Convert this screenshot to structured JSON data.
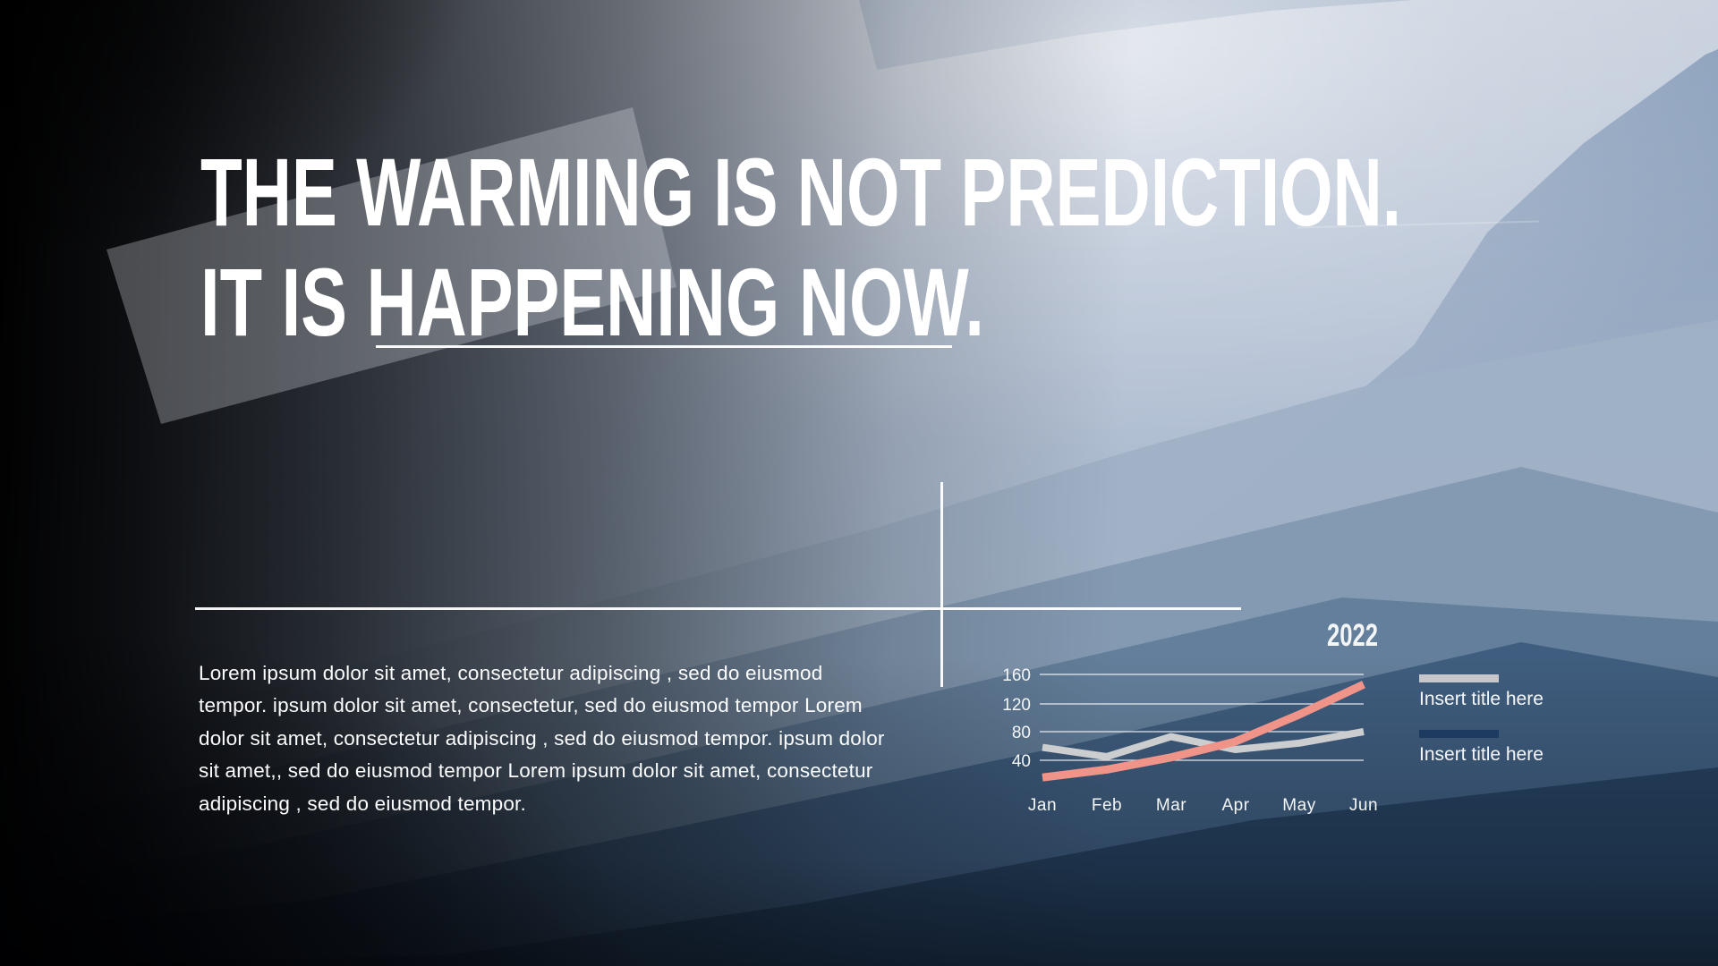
{
  "title": {
    "line1": "THE WARMING IS NOT PREDICTION.",
    "line2": "IT IS HAPPENING NOW."
  },
  "body_text": "Lorem ipsum dolor sit amet, consectetur adipiscing , sed do eiusmod tempor. ipsum dolor sit amet, consectetur, sed do eiusmod tempor  Lorem dolor sit amet, consectetur adipiscing , sed do eiusmod tempor. ipsum dolor sit amet,, sed do eiusmod tempor  Lorem ipsum dolor sit amet, consectetur adipiscing , sed do eiusmod tempor.",
  "chart_data": {
    "type": "line",
    "year_label": "2022",
    "categories": [
      "Jan",
      "Feb",
      "Mar",
      "Apr",
      "May",
      "Jun"
    ],
    "yticks": [
      "160",
      "120",
      "80",
      "40"
    ],
    "ylim": [
      0,
      180
    ],
    "grid": true,
    "legend_position": "right",
    "series": [
      {
        "name": "Insert title here",
        "color": "#cccdcf",
        "values": [
          58,
          45,
          73,
          55,
          64,
          80
        ]
      },
      {
        "name": "Insert title here",
        "color": "#f0948a",
        "values": [
          16,
          27,
          44,
          66,
          104,
          146
        ]
      }
    ],
    "legend": [
      {
        "label": "Insert title here",
        "swatch_color": "#c5c7ca"
      },
      {
        "label": "Insert title here",
        "swatch_color": "#1d3b60"
      }
    ]
  }
}
